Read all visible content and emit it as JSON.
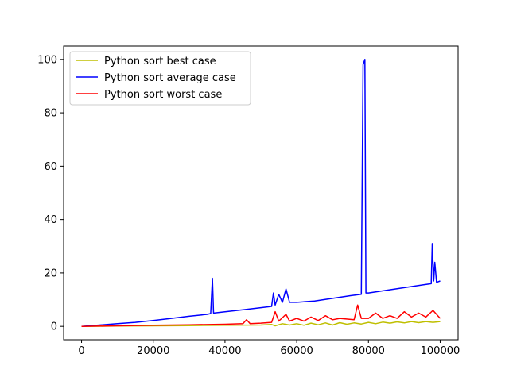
{
  "chart_data": {
    "type": "line",
    "title": "",
    "xlabel": "",
    "ylabel": "",
    "xlim": [
      -5000,
      105000
    ],
    "ylim": [
      -5,
      105
    ],
    "xticks": [
      0,
      20000,
      40000,
      60000,
      80000,
      100000
    ],
    "xtick_labels": [
      "0",
      "20000",
      "40000",
      "60000",
      "80000",
      "100000"
    ],
    "yticks": [
      0,
      20,
      40,
      60,
      80,
      100
    ],
    "ytick_labels": [
      "0",
      "20",
      "40",
      "60",
      "80",
      "100"
    ],
    "grid": false,
    "legend_position": "top-left",
    "series": [
      {
        "name": "Python sort best case",
        "color": "#bfbf00",
        "points": [
          [
            0,
            0
          ],
          [
            10000,
            0.1
          ],
          [
            20000,
            0.2
          ],
          [
            30000,
            0.3
          ],
          [
            40000,
            0.4
          ],
          [
            50000,
            0.5
          ],
          [
            53000,
            0.7
          ],
          [
            54000,
            0.2
          ],
          [
            56000,
            1.0
          ],
          [
            58000,
            0.5
          ],
          [
            60000,
            1.0
          ],
          [
            62000,
            0.4
          ],
          [
            64000,
            1.2
          ],
          [
            66000,
            0.6
          ],
          [
            68000,
            1.3
          ],
          [
            70000,
            0.5
          ],
          [
            72000,
            1.4
          ],
          [
            74000,
            0.8
          ],
          [
            76000,
            1.3
          ],
          [
            78000,
            0.9
          ],
          [
            80000,
            1.5
          ],
          [
            82000,
            1.0
          ],
          [
            84000,
            1.6
          ],
          [
            86000,
            1.2
          ],
          [
            88000,
            1.7
          ],
          [
            90000,
            1.3
          ],
          [
            92000,
            1.8
          ],
          [
            94000,
            1.4
          ],
          [
            96000,
            1.8
          ],
          [
            98000,
            1.5
          ],
          [
            100000,
            1.8
          ]
        ]
      },
      {
        "name": "Python sort average case",
        "color": "#0000ff",
        "points": [
          [
            0,
            0
          ],
          [
            5000,
            0.5
          ],
          [
            10000,
            1.0
          ],
          [
            15000,
            1.5
          ],
          [
            20000,
            2.2
          ],
          [
            25000,
            3.0
          ],
          [
            30000,
            3.8
          ],
          [
            35000,
            4.5
          ],
          [
            36000,
            4.8
          ],
          [
            36500,
            18.0
          ],
          [
            36800,
            5.0
          ],
          [
            40000,
            5.5
          ],
          [
            45000,
            6.2
          ],
          [
            50000,
            7.0
          ],
          [
            53000,
            7.5
          ],
          [
            53500,
            12.5
          ],
          [
            54000,
            8.0
          ],
          [
            55000,
            12.0
          ],
          [
            56000,
            9.0
          ],
          [
            57000,
            14.0
          ],
          [
            58000,
            9.0
          ],
          [
            60000,
            9.0
          ],
          [
            65000,
            9.5
          ],
          [
            70000,
            10.5
          ],
          [
            75000,
            11.5
          ],
          [
            78000,
            12.0
          ],
          [
            78500,
            98.0
          ],
          [
            79000,
            100.0
          ],
          [
            79300,
            12.5
          ],
          [
            80000,
            12.5
          ],
          [
            85000,
            13.5
          ],
          [
            90000,
            14.5
          ],
          [
            95000,
            15.5
          ],
          [
            97500,
            16.0
          ],
          [
            97800,
            31.0
          ],
          [
            98200,
            17.0
          ],
          [
            98500,
            24.0
          ],
          [
            99000,
            16.5
          ],
          [
            100000,
            17.0
          ]
        ]
      },
      {
        "name": "Python sort worst case",
        "color": "#ff0000",
        "points": [
          [
            0,
            0
          ],
          [
            10000,
            0.2
          ],
          [
            20000,
            0.4
          ],
          [
            30000,
            0.6
          ],
          [
            40000,
            0.8
          ],
          [
            45000,
            1.0
          ],
          [
            46000,
            2.5
          ],
          [
            47000,
            1.0
          ],
          [
            50000,
            1.2
          ],
          [
            53000,
            1.5
          ],
          [
            54000,
            5.5
          ],
          [
            55000,
            2.0
          ],
          [
            57000,
            4.5
          ],
          [
            58000,
            2.0
          ],
          [
            60000,
            3.0
          ],
          [
            62000,
            2.0
          ],
          [
            64000,
            3.5
          ],
          [
            66000,
            2.2
          ],
          [
            68000,
            4.0
          ],
          [
            70000,
            2.5
          ],
          [
            72000,
            3.0
          ],
          [
            76000,
            2.5
          ],
          [
            77000,
            8.0
          ],
          [
            78000,
            3.0
          ],
          [
            80000,
            3.0
          ],
          [
            82000,
            5.0
          ],
          [
            84000,
            3.0
          ],
          [
            86000,
            4.0
          ],
          [
            88000,
            3.0
          ],
          [
            90000,
            5.5
          ],
          [
            92000,
            3.5
          ],
          [
            94000,
            5.0
          ],
          [
            96000,
            3.5
          ],
          [
            98000,
            6.0
          ],
          [
            100000,
            3.0
          ]
        ]
      }
    ]
  }
}
